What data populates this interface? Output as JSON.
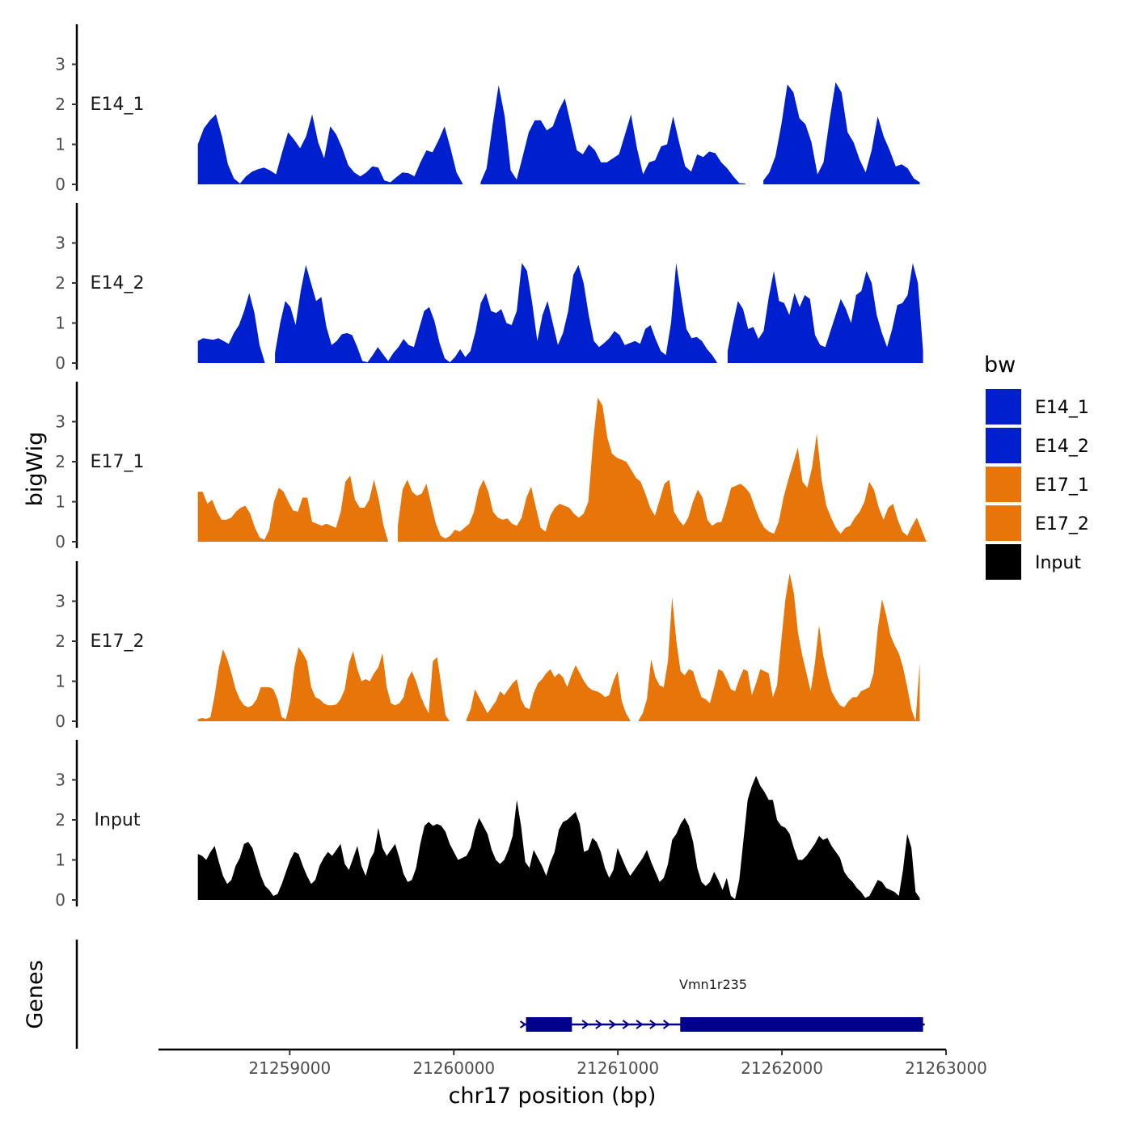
{
  "chart_data": {
    "type": "area",
    "x_label": "chr17 position (bp)",
    "y_label": "bigWig",
    "genes_panel_label": "Genes",
    "x_range": [
      21258200,
      21263000
    ],
    "x_ticks": [
      21259000,
      21260000,
      21261000,
      21262000,
      21263000
    ],
    "x_tick_labels": [
      "21259000",
      "21260000",
      "21261000",
      "21262000",
      "21263000"
    ],
    "y_range": [
      0,
      4
    ],
    "y_ticks": [
      0,
      1,
      2,
      3
    ],
    "y_tick_labels": [
      "0",
      "1",
      "2",
      "3"
    ],
    "legend": {
      "title": "bw",
      "entries": [
        {
          "label": "E14_1",
          "color": "#0020D0"
        },
        {
          "label": "E14_2",
          "color": "#0020D0"
        },
        {
          "label": "E17_1",
          "color": "#E8750A"
        },
        {
          "label": "E17_2",
          "color": "#E8750A"
        },
        {
          "label": "Input",
          "color": "#000000"
        }
      ]
    },
    "series": [
      {
        "name": "E14_1",
        "color": "#0020D0",
        "x_start": 21258440,
        "x_end": 21262840,
        "values": [
          1.0,
          1.4,
          1.6,
          1.75,
          1.2,
          0.5,
          0.15,
          0.02,
          0.2,
          0.32,
          0.38,
          0.42,
          0.35,
          0.25,
          0.8,
          1.3,
          1.12,
          0.9,
          1.2,
          1.75,
          1.05,
          0.65,
          1.45,
          1.25,
          0.9,
          0.48,
          0.3,
          0.2,
          0.3,
          0.45,
          0.42,
          0.1,
          0.05,
          0.18,
          0.3,
          0.28,
          0.2,
          0.55,
          0.85,
          0.8,
          1.1,
          1.45,
          0.9,
          0.3,
          0.02,
          null,
          null,
          0.05,
          0.4,
          1.5,
          2.48,
          1.7,
          0.35,
          0.12,
          0.7,
          1.3,
          1.6,
          1.6,
          1.35,
          1.45,
          1.85,
          2.15,
          1.5,
          0.85,
          0.75,
          1.0,
          0.85,
          0.55,
          0.55,
          0.65,
          0.75,
          1.25,
          1.75,
          0.9,
          0.25,
          0.55,
          0.6,
          0.95,
          1.0,
          1.7,
          1.05,
          0.45,
          0.32,
          0.75,
          0.68,
          0.82,
          0.78,
          0.55,
          0.4,
          0.2,
          0.03,
          0.02,
          null,
          null,
          0.1,
          0.3,
          0.7,
          1.5,
          2.5,
          2.3,
          1.65,
          1.5,
          1.05,
          0.25,
          0.55,
          1.6,
          2.55,
          2.3,
          1.3,
          1.05,
          0.62,
          0.3,
          0.85,
          1.7,
          1.2,
          0.85,
          0.45,
          0.5,
          0.4,
          0.15,
          0.05
        ]
      },
      {
        "name": "E14_2",
        "color": "#0020D0",
        "x_start": 21258440,
        "x_end": 21262860,
        "values": [
          0.55,
          0.62,
          0.6,
          0.58,
          0.62,
          0.55,
          0.48,
          0.75,
          0.95,
          1.3,
          1.75,
          1.25,
          0.45,
          0.02,
          null,
          0.25,
          1.0,
          1.55,
          1.4,
          0.95,
          1.8,
          2.45,
          2.0,
          1.55,
          1.65,
          0.9,
          0.45,
          0.55,
          0.72,
          0.75,
          0.7,
          0.4,
          0.05,
          0.02,
          0.2,
          0.4,
          0.22,
          0.05,
          0.25,
          0.4,
          0.6,
          0.45,
          0.4,
          0.85,
          1.3,
          1.4,
          1.05,
          0.5,
          0.12,
          0.02,
          0.15,
          0.35,
          0.15,
          0.3,
          0.8,
          1.5,
          1.75,
          1.3,
          1.25,
          1.35,
          1.0,
          0.95,
          1.3,
          2.5,
          2.3,
          1.5,
          0.55,
          1.2,
          1.55,
          1.0,
          0.45,
          0.75,
          1.3,
          2.2,
          2.45,
          2.0,
          1.2,
          0.55,
          0.4,
          0.5,
          0.62,
          0.8,
          0.7,
          0.45,
          0.5,
          0.55,
          0.48,
          0.85,
          0.95,
          0.6,
          0.3,
          0.2,
          1.0,
          2.5,
          1.65,
          0.85,
          0.62,
          0.65,
          0.55,
          0.35,
          0.2,
          0.0,
          null,
          0.3,
          0.95,
          1.55,
          1.35,
          0.85,
          0.9,
          0.6,
          0.8,
          1.65,
          2.3,
          1.55,
          1.5,
          1.2,
          1.75,
          1.4,
          1.7,
          1.6,
          0.7,
          0.45,
          0.4,
          0.8,
          1.2,
          1.6,
          1.35,
          1.0,
          1.7,
          1.8,
          2.3,
          2.0,
          1.2,
          0.75,
          0.4,
          0.85,
          1.45,
          1.5,
          1.7,
          2.5,
          2.0,
          0.3
        ]
      },
      {
        "name": "E17_1",
        "color": "#E8750A",
        "x_start": 21258440,
        "x_end": 21262880,
        "values": [
          1.25,
          1.25,
          0.95,
          1.05,
          0.75,
          0.55,
          0.55,
          0.6,
          0.75,
          0.85,
          0.9,
          0.7,
          0.35,
          0.1,
          0.05,
          0.3,
          1.0,
          1.35,
          1.25,
          1.0,
          0.78,
          0.75,
          1.1,
          1.1,
          0.5,
          0.45,
          0.4,
          0.45,
          0.4,
          0.35,
          0.75,
          1.5,
          1.65,
          1.05,
          0.85,
          0.85,
          1.05,
          1.55,
          1.05,
          0.4,
          0.0,
          null,
          0.4,
          1.3,
          1.55,
          1.25,
          1.15,
          1.2,
          1.45,
          0.95,
          0.45,
          0.15,
          0.08,
          0.15,
          0.3,
          0.25,
          0.35,
          0.45,
          0.75,
          1.3,
          1.55,
          1.25,
          0.75,
          0.6,
          0.55,
          0.58,
          0.45,
          0.4,
          0.6,
          1.1,
          1.38,
          0.85,
          0.35,
          0.25,
          0.65,
          0.85,
          0.95,
          0.9,
          0.85,
          0.7,
          0.6,
          0.7,
          1.0,
          2.5,
          3.6,
          3.4,
          2.6,
          2.2,
          2.1,
          2.05,
          2.0,
          1.8,
          1.6,
          1.5,
          1.2,
          0.85,
          0.65,
          1.05,
          1.45,
          1.55,
          0.75,
          0.55,
          0.4,
          0.6,
          1.0,
          1.3,
          1.1,
          0.55,
          0.4,
          0.48,
          0.5,
          0.9,
          1.35,
          1.4,
          1.45,
          1.35,
          1.2,
          0.85,
          0.55,
          0.35,
          0.25,
          0.2,
          0.5,
          1.1,
          1.55,
          1.95,
          2.35,
          1.5,
          1.35,
          1.85,
          2.7,
          1.55,
          0.9,
          0.6,
          0.35,
          0.2,
          0.35,
          0.4,
          0.6,
          0.75,
          1.0,
          1.5,
          1.3,
          0.85,
          0.55,
          0.85,
          0.95,
          0.55,
          0.25,
          0.15,
          0.4,
          0.6,
          0.3,
          0.0
        ]
      },
      {
        "name": "E17_2",
        "color": "#E8750A",
        "x_start": 21258440,
        "x_end": 21262840,
        "values": [
          0.05,
          0.08,
          0.06,
          0.1,
          0.65,
          1.35,
          1.8,
          1.55,
          1.2,
          0.8,
          0.55,
          0.4,
          0.35,
          0.4,
          0.55,
          0.85,
          0.85,
          0.85,
          0.8,
          0.55,
          0.1,
          0.05,
          0.5,
          1.35,
          1.85,
          1.7,
          1.5,
          0.85,
          0.6,
          0.55,
          0.45,
          0.4,
          0.4,
          0.42,
          0.55,
          0.8,
          1.45,
          1.75,
          1.3,
          1.0,
          1.05,
          1.0,
          1.2,
          1.35,
          1.7,
          0.85,
          0.45,
          0.4,
          0.45,
          0.6,
          1.05,
          1.25,
          1.0,
          0.65,
          0.4,
          0.2,
          1.5,
          1.6,
          0.9,
          0.15,
          0.0,
          null,
          null,
          null,
          0.05,
          0.3,
          0.8,
          0.6,
          0.4,
          0.2,
          0.35,
          0.5,
          0.75,
          0.65,
          0.8,
          0.95,
          1.05,
          0.55,
          0.35,
          0.3,
          0.7,
          0.95,
          1.05,
          1.2,
          1.3,
          1.1,
          1.2,
          1.1,
          0.85,
          1.15,
          1.4,
          1.2,
          1.0,
          0.85,
          0.78,
          0.75,
          0.7,
          0.6,
          0.65,
          1.0,
          1.25,
          0.5,
          0.2,
          0.02,
          null,
          0.02,
          0.2,
          0.55,
          1.55,
          1.1,
          0.9,
          0.85,
          1.5,
          3.1,
          2.0,
          1.25,
          1.15,
          1.3,
          1.25,
          0.9,
          0.6,
          0.55,
          0.45,
          0.85,
          1.3,
          1.25,
          1.05,
          0.8,
          0.75,
          1.05,
          1.3,
          1.25,
          0.65,
          0.95,
          1.3,
          1.25,
          1.2,
          0.6,
          0.9,
          2.0,
          3.05,
          3.7,
          3.2,
          2.2,
          1.65,
          1.2,
          0.75,
          1.45,
          2.4,
          1.65,
          1.15,
          0.75,
          0.55,
          0.4,
          0.35,
          0.5,
          0.6,
          0.6,
          0.75,
          0.8,
          0.85,
          1.2,
          2.3,
          3.05,
          2.65,
          2.15,
          1.9,
          1.7,
          1.35,
          0.85,
          0.3,
          0.0,
          1.45
        ]
      },
      {
        "name": "Input",
        "color": "#000000",
        "x_start": 21258440,
        "x_end": 21262840,
        "values": [
          1.15,
          1.1,
          1.0,
          1.2,
          1.35,
          0.95,
          0.6,
          0.4,
          0.5,
          0.85,
          1.05,
          1.4,
          1.45,
          1.3,
          0.95,
          0.6,
          0.35,
          0.25,
          0.1,
          0.15,
          0.4,
          0.7,
          1.0,
          1.2,
          1.15,
          0.85,
          0.6,
          0.4,
          0.5,
          0.85,
          1.05,
          1.2,
          1.1,
          1.25,
          1.4,
          0.9,
          0.75,
          1.05,
          1.35,
          0.85,
          0.6,
          1.0,
          1.2,
          1.8,
          1.3,
          1.1,
          1.25,
          1.4,
          1.05,
          0.65,
          0.45,
          0.5,
          0.8,
          1.4,
          1.85,
          1.95,
          1.85,
          1.9,
          1.85,
          1.7,
          1.4,
          1.2,
          1.0,
          1.05,
          1.1,
          1.3,
          1.75,
          2.05,
          1.85,
          1.65,
          1.25,
          1.0,
          0.9,
          1.0,
          1.25,
          1.6,
          2.5,
          1.85,
          0.95,
          0.8,
          1.25,
          1.05,
          0.85,
          0.6,
          0.95,
          1.2,
          1.75,
          1.95,
          2.0,
          2.1,
          2.2,
          1.9,
          1.2,
          1.25,
          1.55,
          1.45,
          1.2,
          0.8,
          0.55,
          0.75,
          1.3,
          1.05,
          0.8,
          0.6,
          0.75,
          0.9,
          1.05,
          1.25,
          0.95,
          0.7,
          0.45,
          0.55,
          0.9,
          1.5,
          1.65,
          1.9,
          2.05,
          1.85,
          1.45,
          0.8,
          0.45,
          0.35,
          0.45,
          0.7,
          0.5,
          0.25,
          0.55,
          0.1,
          0.02,
          0.5,
          1.5,
          2.5,
          2.85,
          3.1,
          2.85,
          2.7,
          2.5,
          2.5,
          2.0,
          1.85,
          1.8,
          1.65,
          1.3,
          1.0,
          1.0,
          1.1,
          1.25,
          1.4,
          1.6,
          1.5,
          1.55,
          1.35,
          1.2,
          1.05,
          0.7,
          0.55,
          0.45,
          0.3,
          0.2,
          0.05,
          0.1,
          0.3,
          0.5,
          0.45,
          0.3,
          0.25,
          0.2,
          0.1,
          0.75,
          1.65,
          1.3,
          0.2,
          0.05
        ]
      }
    ],
    "genes": [
      {
        "name": "Vmn1r235",
        "strand": "+",
        "start": 21260420,
        "end": 21262870,
        "exons": [
          [
            21260440,
            21260720
          ],
          [
            21261380,
            21262860
          ]
        ],
        "color": "#00008B"
      }
    ]
  }
}
